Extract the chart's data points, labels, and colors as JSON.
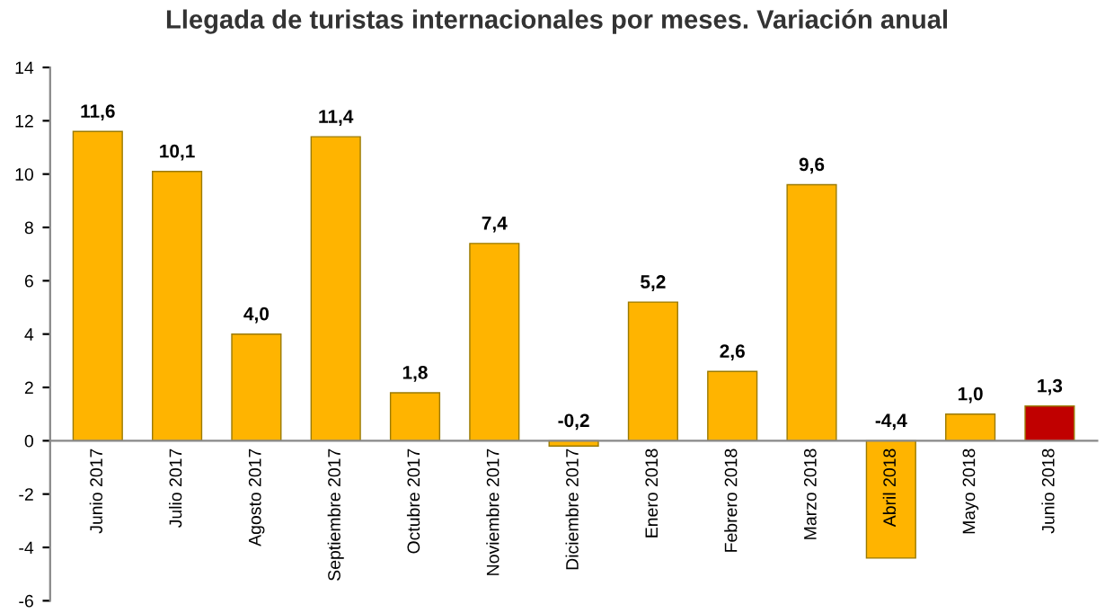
{
  "chart_data": {
    "type": "bar",
    "title": "Llegada de turistas internacionales por meses. Variación anual",
    "categories": [
      "Junio 2017",
      "Julio 2017",
      "Agosto 2017",
      "Septiembre 2017",
      "Octubre 2017",
      "Noviembre 2017",
      "Diciembre 2017",
      "Enero 2018",
      "Febrero 2018",
      "Marzo 2018",
      "Abril 2018",
      "Mayo 2018",
      "Junio 2018"
    ],
    "values": [
      11.6,
      10.1,
      4.0,
      11.4,
      1.8,
      7.4,
      -0.2,
      5.2,
      2.6,
      9.6,
      -4.4,
      1.0,
      1.3
    ],
    "value_labels": [
      "11,6",
      "10,1",
      "4,0",
      "11,4",
      "1,8",
      "7,4",
      "-0,2",
      "5,2",
      "2,6",
      "9,6",
      "-4,4",
      "1,0",
      "1,3"
    ],
    "colors": [
      "#ffb400",
      "#ffb400",
      "#ffb400",
      "#ffb400",
      "#ffb400",
      "#ffb400",
      "#ffb400",
      "#ffb400",
      "#ffb400",
      "#ffb400",
      "#ffb400",
      "#ffb400",
      "#c00000"
    ],
    "ylim": [
      -6,
      14
    ],
    "yticks": [
      -6,
      -4,
      -2,
      0,
      2,
      4,
      6,
      8,
      10,
      12,
      14
    ],
    "grid": false,
    "legend": false
  }
}
